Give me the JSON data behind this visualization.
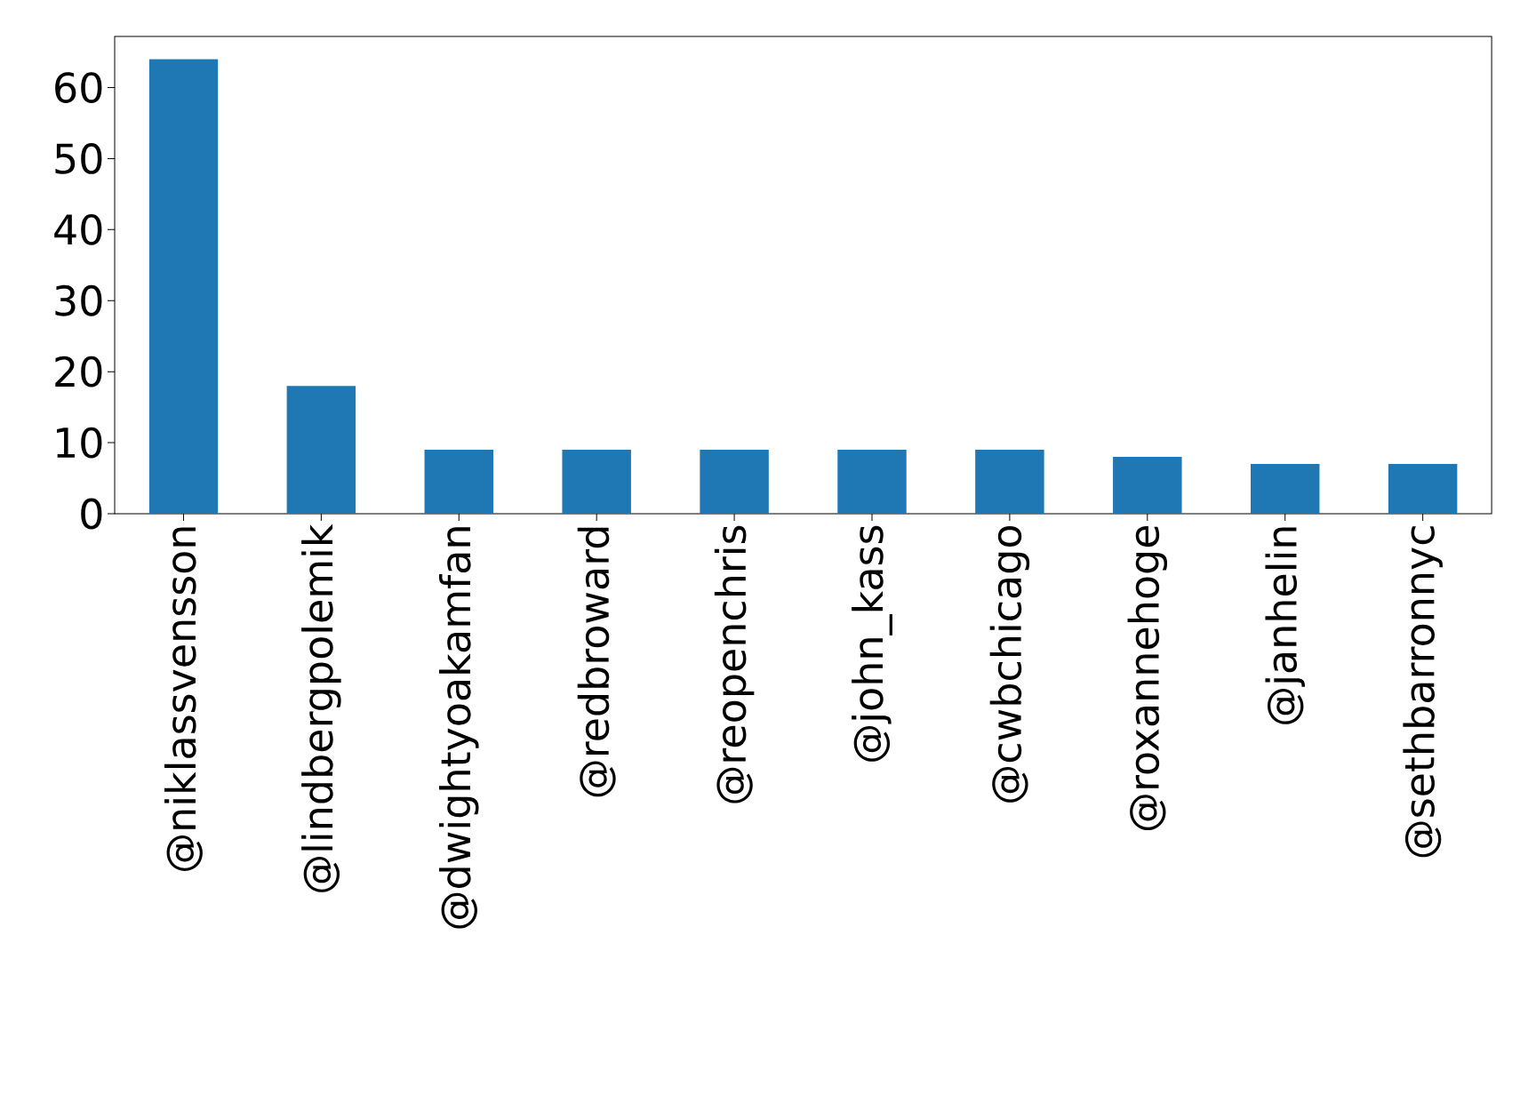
{
  "chart_data": {
    "type": "bar",
    "categories": [
      "@niklassvensson",
      "@lindbergpolemik",
      "@dwightyoakamfan",
      "@redbroward",
      "@reopenchris",
      "@john_kass",
      "@cwbchicago",
      "@roxannehoge",
      "@janhelin",
      "@sethbarronnyc"
    ],
    "values": [
      64,
      18,
      9,
      9,
      9,
      9,
      9,
      8,
      7,
      7
    ],
    "color": "#1f77b4",
    "ylim": [
      0,
      67.2
    ],
    "yticks": [
      0,
      10,
      20,
      30,
      40,
      50,
      60
    ]
  }
}
